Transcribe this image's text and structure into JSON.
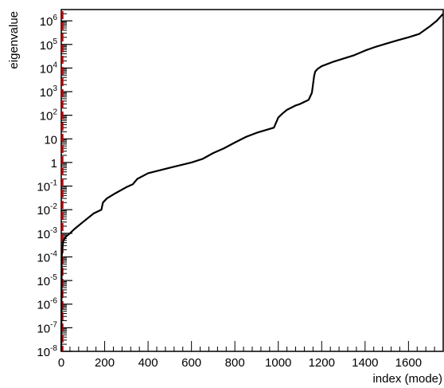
{
  "chart_data": {
    "type": "line",
    "title": "",
    "xlabel": "index (mode)",
    "ylabel": "eigenvalue",
    "xlim": [
      0,
      1760
    ],
    "ylim": [
      1e-08,
      3000000.0
    ],
    "yscale": "log",
    "grid": false,
    "legend": "none",
    "line_color": "#000000",
    "marker_color": "#cc0000",
    "x_ticks": [
      "0",
      "200",
      "400",
      "600",
      "800",
      "1000",
      "1200",
      "1400",
      "1600"
    ],
    "y_ticks": [
      {
        "value": 1e-08,
        "base": "10",
        "exp": "-8"
      },
      {
        "value": 1e-07,
        "base": "10",
        "exp": "-7"
      },
      {
        "value": 1e-06,
        "base": "10",
        "exp": "-6"
      },
      {
        "value": 1e-05,
        "base": "10",
        "exp": "-5"
      },
      {
        "value": 0.0001,
        "base": "10",
        "exp": "-4"
      },
      {
        "value": 0.001,
        "base": "10",
        "exp": "-3"
      },
      {
        "value": 0.01,
        "base": "10",
        "exp": "-2"
      },
      {
        "value": 0.1,
        "base": "10",
        "exp": "-1"
      },
      {
        "value": 1,
        "base": "1",
        "exp": ""
      },
      {
        "value": 10,
        "base": "10",
        "exp": ""
      },
      {
        "value": 100,
        "base": "10",
        "exp": "2"
      },
      {
        "value": 1000,
        "base": "10",
        "exp": "3"
      },
      {
        "value": 10000,
        "base": "10",
        "exp": "4"
      },
      {
        "value": 100000,
        "base": "10",
        "exp": "5"
      },
      {
        "value": 1000000,
        "base": "10",
        "exp": "6"
      }
    ],
    "series": [
      {
        "x": [
          0,
          2,
          6,
          10,
          20,
          40,
          60,
          100,
          150,
          185,
          192,
          210,
          250,
          300,
          330,
          350,
          400,
          500,
          600,
          650,
          700,
          750,
          800,
          850,
          900,
          980,
          1000,
          1020,
          1040,
          1060,
          1080,
          1100,
          1140,
          1155,
          1160,
          1165,
          1170,
          1180,
          1200,
          1250,
          1300,
          1350,
          1400,
          1450,
          1500,
          1550,
          1600,
          1650,
          1700,
          1730,
          1760
        ],
        "y": [
          1e-08,
          0.0001,
          0.0003,
          0.0005,
          0.0007,
          0.001,
          0.0015,
          0.003,
          0.007,
          0.01,
          0.02,
          0.03,
          0.05,
          0.09,
          0.12,
          0.2,
          0.35,
          0.6,
          1,
          1.4,
          2.5,
          4,
          7,
          12,
          18,
          30,
          80,
          120,
          170,
          210,
          260,
          300,
          450,
          900,
          2000,
          4500,
          7000,
          9000,
          12000,
          18000,
          25000,
          35000,
          55000,
          80000,
          110000,
          150000,
          200000,
          280000,
          600000,
          1000000,
          2000000
        ]
      }
    ]
  }
}
